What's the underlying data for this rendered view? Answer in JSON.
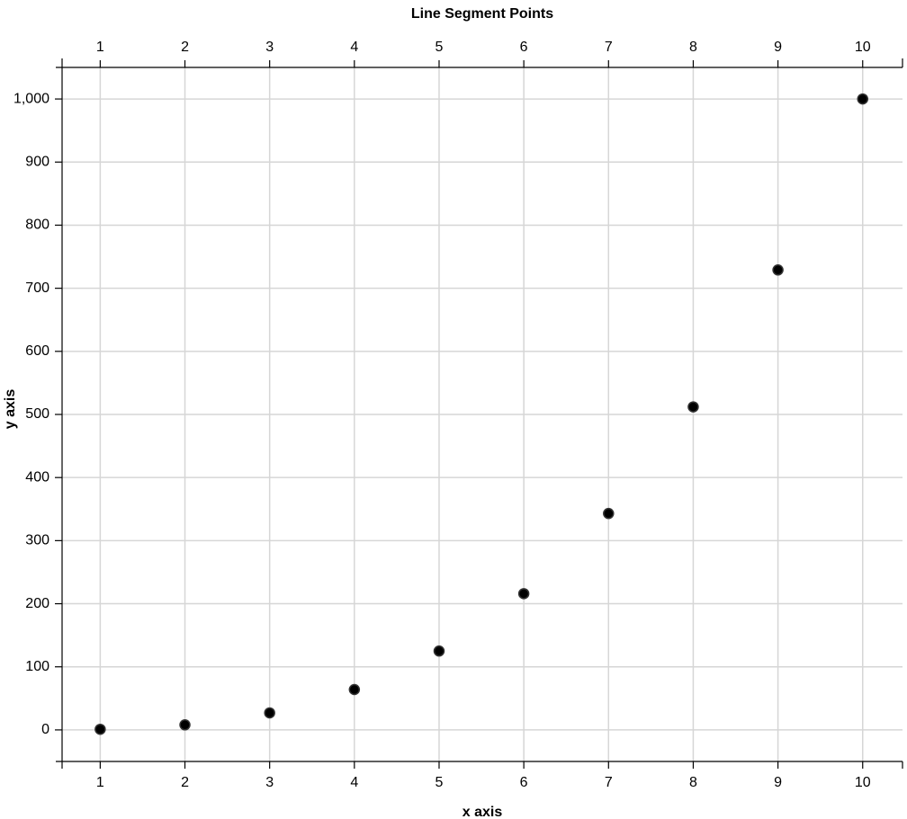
{
  "chart_data": {
    "type": "scatter",
    "title": "Line Segment Points",
    "xlabel": "x axis",
    "ylabel": "y axis",
    "x": [
      1,
      2,
      3,
      4,
      5,
      6,
      7,
      8,
      9,
      10
    ],
    "values": [
      1,
      8,
      27,
      64,
      125,
      216,
      343,
      512,
      729,
      1000
    ],
    "color": "#000000",
    "xlim": [
      0.55,
      10.47
    ],
    "xticks": [
      1,
      2,
      3,
      4,
      5,
      6,
      7,
      8,
      9,
      10
    ],
    "ylim": [
      -50,
      1050
    ],
    "yticks": [
      0,
      100,
      200,
      300,
      400,
      500,
      600,
      700,
      800,
      900,
      {
        "value": 1000,
        "label": "1,000"
      }
    ],
    "grid": true
  }
}
